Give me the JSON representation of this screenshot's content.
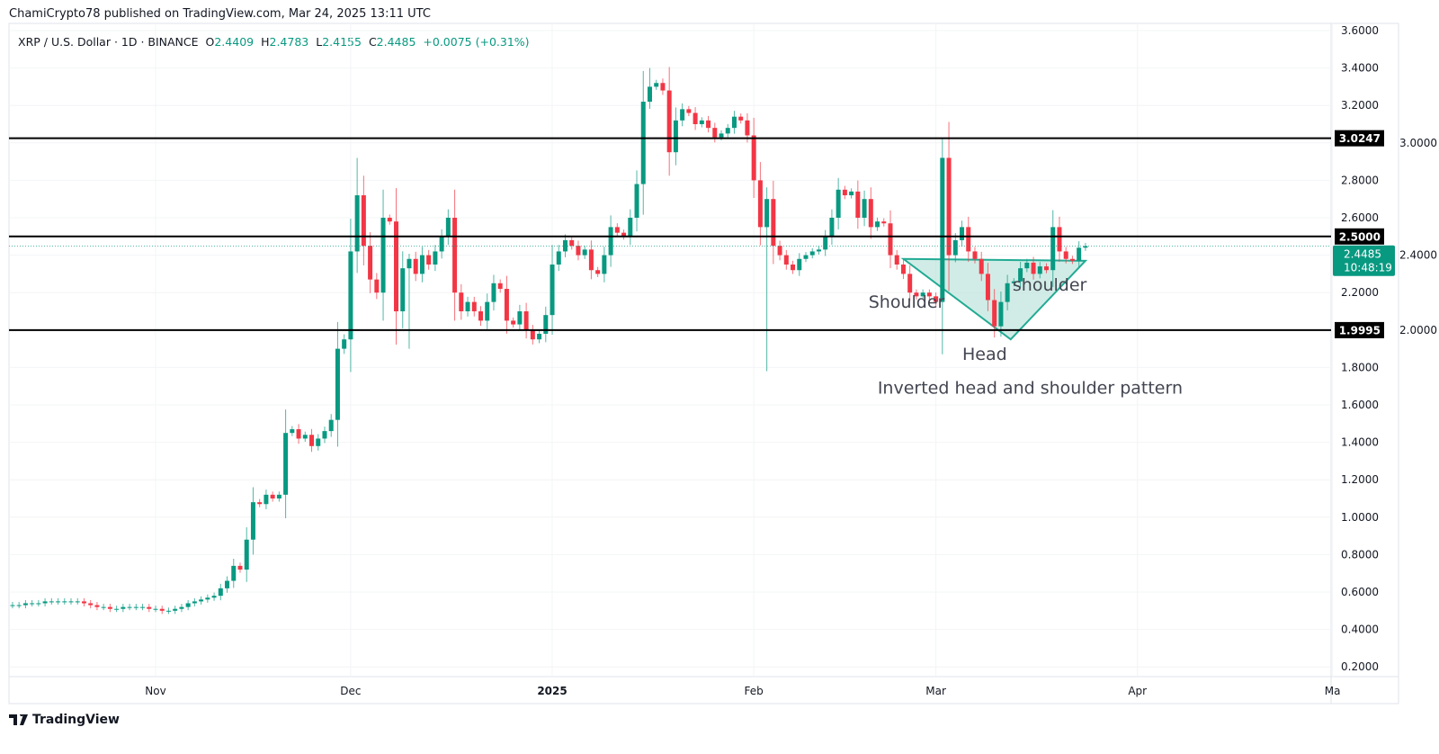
{
  "publisher": "ChamiCrypto78 published on TradingView.com, Mar 24, 2025 13:11 UTC",
  "legend": {
    "symbol": "XRP / U.S. Dollar · 1D · BINANCE",
    "o_label": "O",
    "o": "2.4409",
    "h_label": "H",
    "h": "2.4783",
    "l_label": "L",
    "l": "2.4155",
    "c_label": "C",
    "c": "2.4485",
    "change": "+0.0075 (+0.31%)"
  },
  "footer": {
    "brand": "TradingView"
  },
  "colors": {
    "up": "#089981",
    "down": "#f23645",
    "line": "#000000",
    "pattern_fill": "#b2dfd6",
    "pattern_stroke": "#22ab94"
  },
  "chart_data": {
    "type": "candlestick",
    "symbol": "XRPUSD",
    "interval": "1D",
    "start_date": "2024-10-10",
    "end_date": "2025-03-24",
    "ylim": [
      0.1,
      3.65
    ],
    "y_ticks": [
      "0.2000",
      "0.4000",
      "0.6000",
      "0.8000",
      "1.0000",
      "1.2000",
      "1.4000",
      "1.6000",
      "1.8000",
      "2.0000",
      "2.2000",
      "2.4000",
      "2.6000",
      "2.8000",
      "3.0000",
      "3.2000",
      "3.4000",
      "3.6000"
    ],
    "x_ticks": [
      {
        "label": "Nov",
        "day": 22,
        "bold": false
      },
      {
        "label": "Dec",
        "day": 52,
        "bold": false
      },
      {
        "label": "2025",
        "day": 83,
        "bold": true
      },
      {
        "label": "Feb",
        "day": 114,
        "bold": false
      },
      {
        "label": "Mar",
        "day": 142,
        "bold": false
      },
      {
        "label": "Apr",
        "day": 173,
        "bold": false
      },
      {
        "label": "Ma",
        "day": 203,
        "bold": false
      }
    ],
    "first_open": 0.53,
    "closes": [
      0.53,
      0.53,
      0.54,
      0.54,
      0.54,
      0.55,
      0.55,
      0.55,
      0.55,
      0.55,
      0.55,
      0.54,
      0.53,
      0.52,
      0.52,
      0.51,
      0.51,
      0.52,
      0.52,
      0.52,
      0.52,
      0.51,
      0.51,
      0.5,
      0.5,
      0.51,
      0.52,
      0.54,
      0.55,
      0.56,
      0.57,
      0.58,
      0.62,
      0.66,
      0.74,
      0.72,
      0.88,
      1.08,
      1.07,
      1.12,
      1.1,
      1.12,
      1.45,
      1.47,
      1.42,
      1.44,
      1.38,
      1.42,
      1.46,
      1.52,
      1.9,
      1.95,
      2.42,
      2.72,
      2.45,
      2.27,
      2.2,
      2.6,
      2.58,
      2.1,
      2.33,
      2.38,
      2.3,
      2.4,
      2.35,
      2.42,
      2.5,
      2.6,
      2.2,
      2.1,
      2.15,
      2.1,
      2.05,
      2.15,
      2.25,
      2.22,
      2.05,
      2.03,
      2.1,
      2.0,
      1.95,
      1.98,
      2.08,
      2.35,
      2.42,
      2.48,
      2.45,
      2.4,
      2.43,
      2.32,
      2.3,
      2.4,
      2.55,
      2.52,
      2.5,
      2.6,
      2.78,
      3.22,
      3.3,
      3.32,
      3.28,
      2.95,
      3.12,
      3.18,
      3.16,
      3.1,
      3.12,
      3.08,
      3.03,
      3.05,
      3.08,
      3.14,
      3.12,
      3.04,
      2.8,
      2.55,
      2.7,
      2.45,
      2.4,
      2.35,
      2.32,
      2.38,
      2.4,
      2.42,
      2.43,
      2.5,
      2.6,
      2.75,
      2.72,
      2.74,
      2.6,
      2.7,
      2.55,
      2.58,
      2.57,
      2.4,
      2.35,
      2.3,
      2.2,
      2.18,
      2.2,
      2.18,
      2.15,
      2.92,
      2.4,
      2.48,
      2.55,
      2.42,
      2.38,
      2.3,
      2.16,
      2.02,
      2.15,
      2.25,
      2.26,
      2.33,
      2.36,
      2.3,
      2.34,
      2.32,
      2.55,
      2.42,
      2.38,
      2.37,
      2.44,
      2.4485
    ],
    "wick_overrides": [
      {
        "day": 53,
        "high": 2.92
      },
      {
        "day": 61,
        "low": 1.9
      },
      {
        "day": 98,
        "high": 3.4
      },
      {
        "day": 116,
        "low": 1.78
      },
      {
        "day": 143,
        "high": 3.02
      },
      {
        "day": 151,
        "low": 1.96
      }
    ],
    "horizontal_levels": [
      {
        "price": 3.0247,
        "label": "3.0247"
      },
      {
        "price": 2.5,
        "label": "2.5000"
      },
      {
        "price": 1.9995,
        "label": "1.9995"
      }
    ],
    "last_price": {
      "price": 2.4485,
      "label": "2.4485",
      "countdown": "10:48:19"
    },
    "pattern": {
      "points": [
        {
          "day": 137,
          "price": 2.38
        },
        {
          "day": 153.5,
          "price": 1.95
        },
        {
          "day": 165,
          "price": 2.37
        }
      ],
      "inner_top": {
        "day": 145,
        "price": 2.35
      }
    },
    "annotations": [
      {
        "text": "Shoulder",
        "day": 137.5,
        "price": 2.12
      },
      {
        "text": "Head",
        "day": 149.5,
        "price": 1.84
      },
      {
        "text": "shoulder",
        "day": 159.5,
        "price": 2.21
      },
      {
        "text": "Inverted head and shoulder pattern",
        "day": 156.5,
        "price": 1.66
      }
    ]
  }
}
